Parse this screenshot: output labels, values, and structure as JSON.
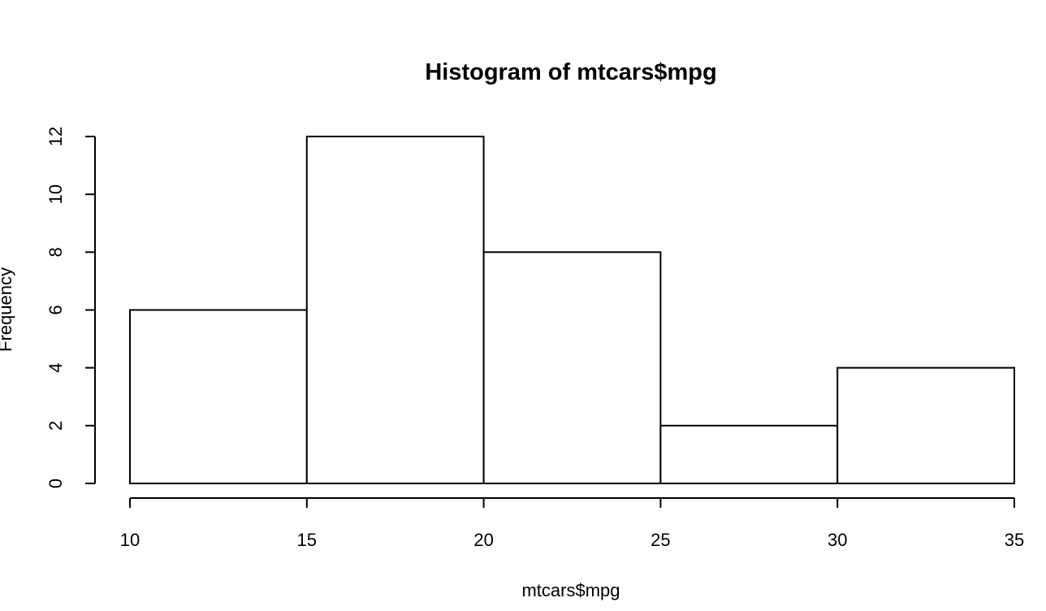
{
  "chart_data": {
    "type": "bar",
    "title": "Histogram of mtcars$mpg",
    "xlabel": "mtcars$mpg",
    "ylabel": "Frequency",
    "bins": [
      {
        "start": 10,
        "end": 15,
        "count": 6
      },
      {
        "start": 15,
        "end": 20,
        "count": 12
      },
      {
        "start": 20,
        "end": 25,
        "count": 8
      },
      {
        "start": 25,
        "end": 30,
        "count": 2
      },
      {
        "start": 30,
        "end": 35,
        "count": 4
      }
    ],
    "x_ticks": [
      10,
      15,
      20,
      25,
      30,
      35
    ],
    "y_ticks": [
      0,
      2,
      4,
      6,
      8,
      10,
      12
    ],
    "xlim": [
      10,
      35
    ],
    "ylim": [
      0,
      12
    ],
    "grid": false,
    "bar_fill": "#ffffff",
    "bar_stroke": "#000000"
  }
}
